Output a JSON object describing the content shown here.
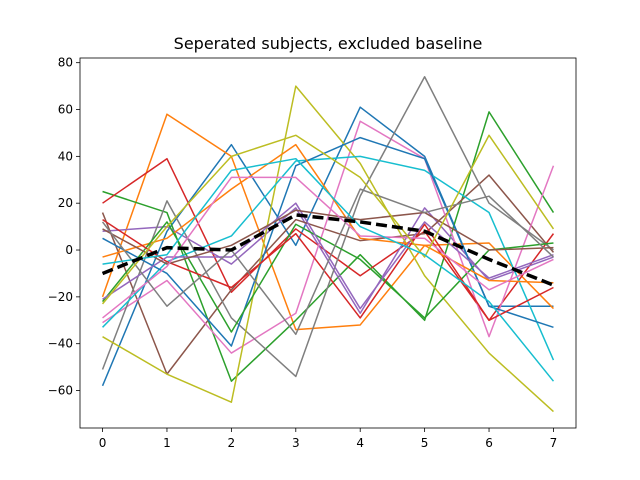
{
  "chart_data": {
    "type": "line",
    "title": "Seperated subjects, excluded baseline",
    "xlabel": "",
    "ylabel": "",
    "x": [
      0,
      1,
      2,
      3,
      4,
      5,
      6,
      7
    ],
    "xlim": [
      -0.35,
      7.35
    ],
    "ylim": [
      -76,
      82
    ],
    "xticks": [
      0,
      1,
      2,
      3,
      4,
      5,
      6,
      7
    ],
    "yticks": [
      -60,
      -40,
      -20,
      0,
      20,
      40,
      60,
      80
    ],
    "grid": false,
    "legend": "none",
    "series": [
      {
        "color": "#1f77b4",
        "values": [
          -58,
          8,
          45,
          2,
          61,
          40,
          -24,
          -24
        ]
      },
      {
        "color": "#ff7f0e",
        "values": [
          -20,
          58,
          40,
          -34,
          -32,
          2,
          3,
          -25
        ]
      },
      {
        "color": "#2ca02c",
        "values": [
          25,
          16,
          -56,
          -30,
          -2,
          -30,
          59,
          16
        ]
      },
      {
        "color": "#d62728",
        "values": [
          20,
          39,
          -18,
          9,
          -11,
          8,
          -30,
          7
        ]
      },
      {
        "color": "#9467bd",
        "values": [
          8,
          10,
          -6,
          18,
          -27,
          18,
          -13,
          -3
        ]
      },
      {
        "color": "#8c564b",
        "values": [
          16,
          -53,
          -17,
          13,
          4,
          7,
          32,
          -1
        ]
      },
      {
        "color": "#e377c2",
        "values": [
          -31,
          -13,
          -44,
          -27,
          55,
          39,
          -37,
          36
        ]
      },
      {
        "color": "#7f7f7f",
        "values": [
          -51,
          21,
          -29,
          -54,
          23,
          74,
          20,
          0
        ]
      },
      {
        "color": "#bcbd22",
        "values": [
          -37,
          -53,
          -65,
          70,
          37,
          -11,
          -44,
          -69
        ]
      },
      {
        "color": "#17becf",
        "values": [
          -33,
          -5,
          6,
          38,
          40,
          34,
          16,
          -47
        ]
      },
      {
        "color": "#1f77b4",
        "values": [
          5,
          -10,
          -41,
          36,
          48,
          39,
          -24,
          -33
        ]
      },
      {
        "color": "#ff7f0e",
        "values": [
          -3,
          5,
          26,
          45,
          5,
          2,
          -13,
          -14
        ]
      },
      {
        "color": "#2ca02c",
        "values": [
          -22,
          12,
          -35,
          11,
          -4,
          -29,
          0,
          3
        ]
      },
      {
        "color": "#d62728",
        "values": [
          13,
          -5,
          -16,
          7,
          -29,
          11,
          -30,
          -16
        ]
      },
      {
        "color": "#9467bd",
        "values": [
          -21,
          -3,
          -3,
          20,
          -25,
          12,
          -12,
          -2
        ]
      },
      {
        "color": "#8c564b",
        "values": [
          9,
          -6,
          2,
          17,
          13,
          16,
          0,
          1
        ]
      },
      {
        "color": "#e377c2",
        "values": [
          -29,
          -7,
          31,
          31,
          6,
          5,
          -17,
          -4
        ]
      },
      {
        "color": "#7f7f7f",
        "values": [
          12,
          -24,
          0,
          -36,
          26,
          16,
          23,
          -3
        ]
      },
      {
        "color": "#bcbd22",
        "values": [
          -23,
          10,
          40,
          49,
          31,
          -3,
          49,
          9
        ]
      },
      {
        "color": "#17becf",
        "values": [
          -6,
          -2,
          34,
          39,
          10,
          -2,
          -22,
          -56
        ]
      },
      {
        "color": "#000000",
        "dashed": true,
        "width": 3.5,
        "values": [
          -10,
          1,
          0,
          15,
          12,
          8,
          -4,
          -15
        ]
      }
    ]
  }
}
